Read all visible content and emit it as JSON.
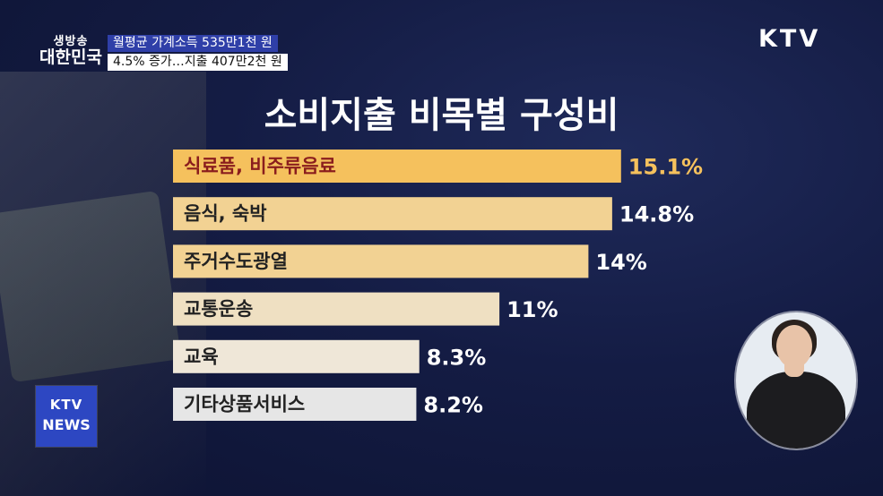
{
  "logo": {
    "line1": "생방송",
    "line2": "대한민국"
  },
  "headline": {
    "line1": "월평균 가계소득 535만1천 원",
    "line2": "4.5% 증가…지출 407만2천 원"
  },
  "channel": "KTV",
  "news_badge": {
    "line1": "KTV",
    "line2": "NEWS"
  },
  "chart_data": {
    "type": "bar",
    "orientation": "horizontal",
    "title": "소비지출 비목별 구성비",
    "categories": [
      "식료품, 비주류음료",
      "음식, 숙박",
      "주거수도광열",
      "교통운송",
      "교육",
      "기타상품서비스"
    ],
    "values": [
      15.1,
      14.8,
      14,
      11,
      8.3,
      8.2
    ],
    "value_labels": [
      "15.1%",
      "14.8%",
      "14%",
      "11%",
      "8.3%",
      "8.2%"
    ],
    "unit": "%",
    "highlight_index": 0,
    "colors": {
      "highlight_bar": "#f5c15d",
      "highlight_text": "#8a1d1d",
      "highlight_value": "#f5c15d",
      "bars": [
        "#f5c15d",
        "#f2d293",
        "#f2d293",
        "#efe0c2",
        "#efe7d8",
        "#e6e6e6"
      ],
      "label_text": "#222222",
      "value_text": "#ffffff"
    }
  }
}
